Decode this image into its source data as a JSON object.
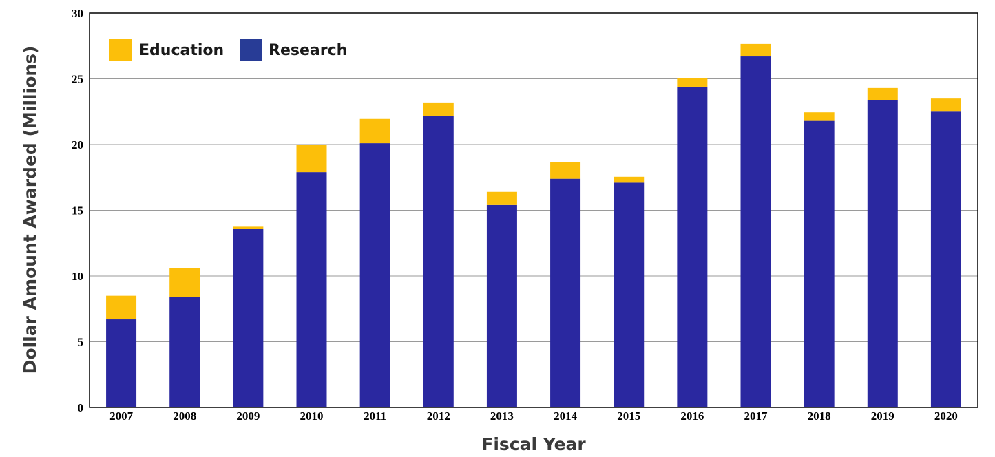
{
  "chart_data": {
    "type": "bar",
    "stacked": true,
    "title": "",
    "xlabel": "Fiscal Year",
    "ylabel": "Dollar Amount Awarded (Millions)",
    "ylim": [
      0,
      30
    ],
    "yticks": [
      "0",
      "5",
      "10",
      "15",
      "20",
      "25",
      "30"
    ],
    "grid": true,
    "legend_position": "top-left",
    "categories": [
      "2007",
      "2008",
      "2009",
      "2010",
      "2011",
      "2012",
      "2013",
      "2014",
      "2015",
      "2016",
      "2017",
      "2018",
      "2019",
      "2020"
    ],
    "series": [
      {
        "name": "Research",
        "color": "#2a28a0",
        "values": [
          6.7,
          8.4,
          13.6,
          17.9,
          20.1,
          22.2,
          15.4,
          17.4,
          17.1,
          24.4,
          26.7,
          21.8,
          23.4,
          22.5
        ]
      },
      {
        "name": "Education",
        "color": "#fcbf0a",
        "values": [
          1.8,
          2.2,
          0.15,
          2.1,
          1.85,
          1.0,
          1.0,
          1.25,
          0.45,
          0.65,
          0.95,
          0.65,
          0.9,
          1.0
        ]
      }
    ],
    "legend": [
      {
        "label": "Education",
        "color": "#fcbf0a"
      },
      {
        "label": "Research",
        "color": "#283c96"
      }
    ]
  }
}
